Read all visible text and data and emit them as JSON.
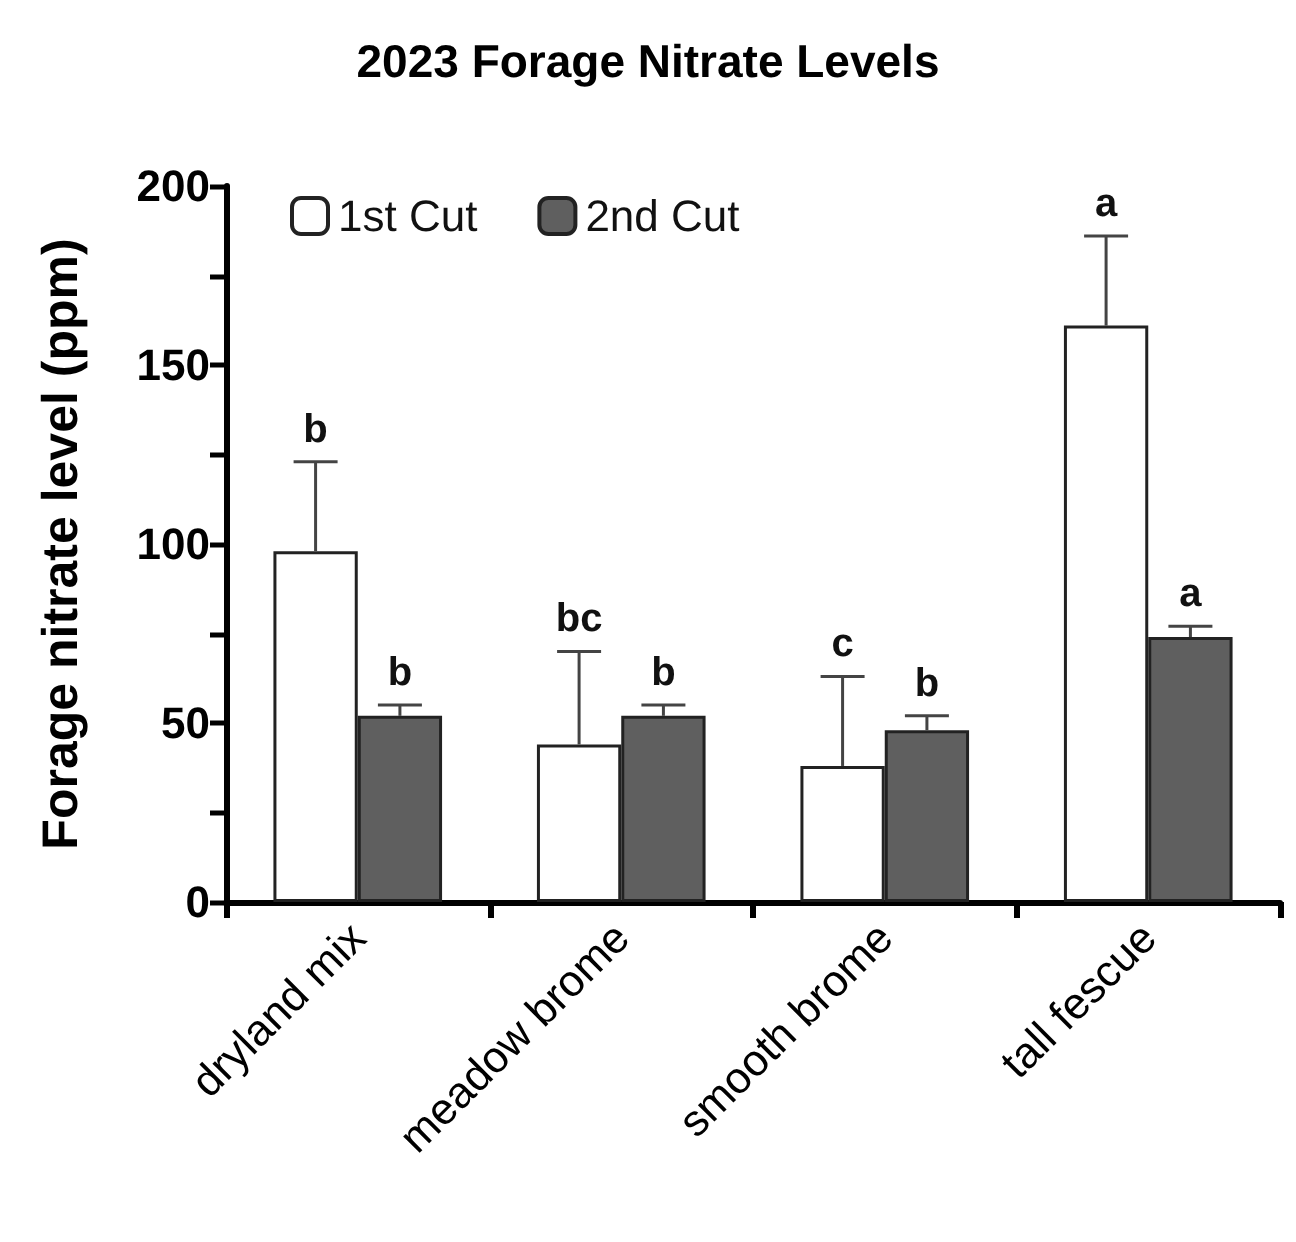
{
  "chart_data": {
    "type": "bar",
    "title": "2023 Forage Nitrate Levels",
    "ylabel": "Forage nitrate level (ppm)",
    "categories": [
      "dryland mix",
      "meadow brome",
      "smooth brome",
      "tall fescue"
    ],
    "series": [
      {
        "name": "1st Cut",
        "color": "#ffffff",
        "values": [
          98,
          44,
          38,
          161
        ],
        "errors": [
          [
            98,
            123
          ],
          [
            44,
            70
          ],
          [
            38,
            63
          ],
          [
            161,
            186
          ]
        ],
        "value_labels": [
          "b",
          "bc",
          "c",
          "a"
        ]
      },
      {
        "name": "2nd Cut",
        "color": "#5f5f5f",
        "values": [
          52,
          52,
          48,
          74
        ],
        "errors": [
          [
            52,
            55
          ],
          [
            52,
            55
          ],
          [
            48,
            52
          ],
          [
            74,
            77
          ]
        ],
        "value_labels": [
          "b",
          "b",
          "b",
          "a"
        ]
      }
    ],
    "ylim": [
      0,
      200
    ],
    "yticks": [
      0,
      {
        "value": 25,
        "label": null
      },
      50,
      {
        "value": 75,
        "label": null
      },
      100,
      {
        "value": 125,
        "label": null
      },
      150,
      {
        "value": 175,
        "label": null
      },
      200
    ],
    "grid": false,
    "legend": "top left"
  }
}
